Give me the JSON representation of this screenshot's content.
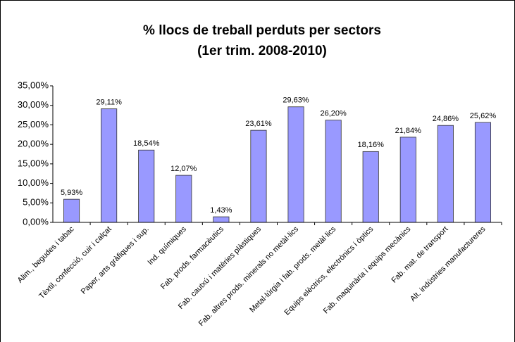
{
  "chart_data": {
    "type": "bar",
    "title": "% llocs de treball perduts per sectors",
    "subtitle": "(1er trim. 2008-2010)",
    "categories": [
      "Alim., begudes i tabac",
      "Tèxtil, confecció, cuir i calçat",
      "Paper, arts gràfiques i sup.",
      "Ind. químiques",
      "Fab. prods. farmacèutics",
      "Fab. cautxú i matèries plàstiques",
      "Fab. altres prods. minerals no metàl·lics",
      "Metal·lúrgia i fab. prods. metàl·lics",
      "Equips elèctrics, electrònics i òptics",
      "Fab. maquinària i equips mecànics",
      "Fab. mat. de transport",
      "Alt. indústries manufactureres"
    ],
    "values": [
      5.93,
      29.11,
      18.54,
      12.07,
      1.43,
      23.61,
      29.63,
      26.2,
      18.16,
      21.84,
      24.86,
      25.62
    ],
    "value_labels": [
      "5,93%",
      "29,11%",
      "18,54%",
      "12,07%",
      "1,43%",
      "23,61%",
      "29,63%",
      "26,20%",
      "18,16%",
      "21,84%",
      "24,86%",
      "25,62%"
    ],
    "color": "#9999ff",
    "ylim": [
      0,
      35
    ],
    "yticks": [
      {
        "value": 0,
        "label": "0,00%"
      },
      {
        "value": 5,
        "label": "5,00%"
      },
      {
        "value": 10,
        "label": "10,00%"
      },
      {
        "value": 15,
        "label": "15,00%"
      },
      {
        "value": 20,
        "label": "20,00%"
      },
      {
        "value": 25,
        "label": "25,00%"
      },
      {
        "value": 30,
        "label": "30,00%"
      },
      {
        "value": 35,
        "label": "35,00%"
      }
    ]
  }
}
